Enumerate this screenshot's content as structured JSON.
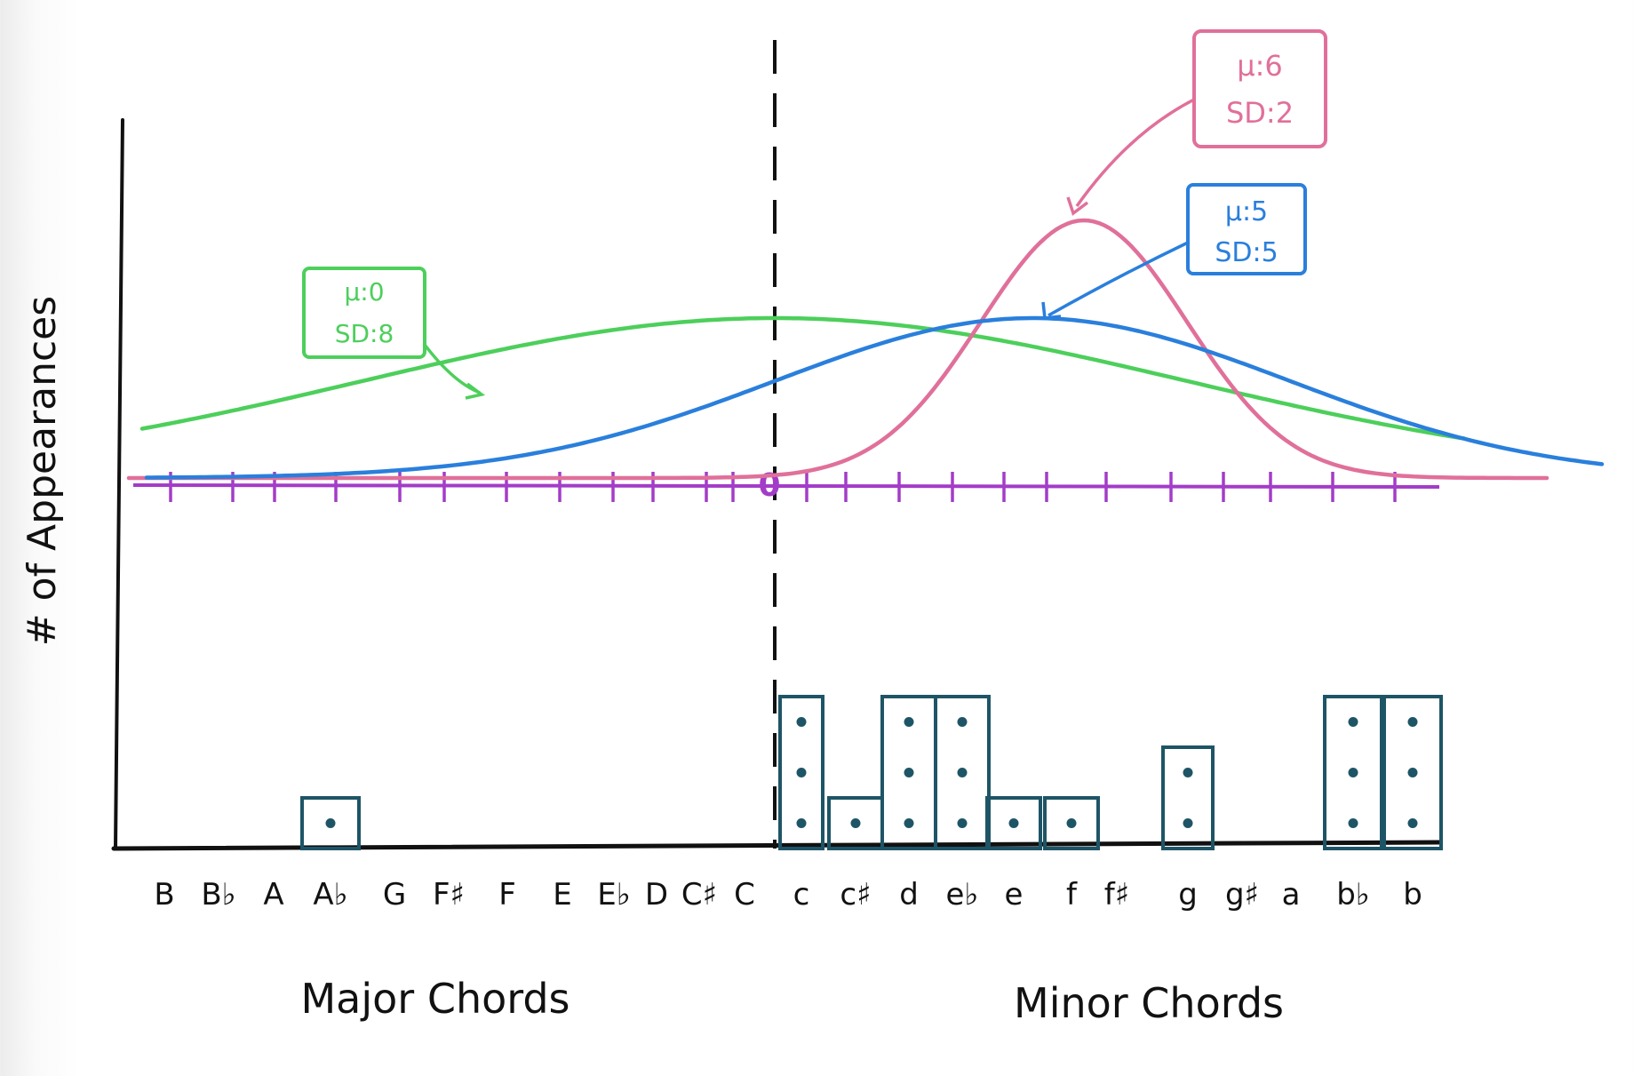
{
  "chart_data": {
    "type": "bar",
    "title": "",
    "xlabel_left": "Major Chords",
    "xlabel_right": "Minor Chords",
    "ylabel": "# of Appearances",
    "zero_label": "0",
    "categories": [
      "B",
      "B♭",
      "A",
      "A♭",
      "G",
      "F♯",
      "F",
      "E",
      "E♭",
      "D",
      "C♯",
      "C",
      "c",
      "c♯",
      "d",
      "e♭",
      "e",
      "f",
      "f♯",
      "g",
      "g♯",
      "a",
      "b♭",
      "b"
    ],
    "values": [
      0,
      0,
      0,
      1,
      0,
      0,
      0,
      0,
      0,
      0,
      0,
      0,
      3,
      1,
      3,
      3,
      1,
      1,
      0,
      2,
      0,
      0,
      3,
      3
    ],
    "ylim": [
      0,
      3
    ],
    "grid": false,
    "annotations": [
      {
        "mu": "μ:0",
        "sd": "SD:8",
        "color": "#4dcf5b"
      },
      {
        "mu": "μ:6",
        "sd": "SD:2",
        "color": "#e0709a"
      },
      {
        "mu": "μ:5",
        "sd": "SD:5",
        "color": "#2a7fdc"
      }
    ],
    "curves": [
      {
        "color": "#4dcf5b",
        "mean": 0,
        "sd": 8
      },
      {
        "color": "#e0709a",
        "mean": 6,
        "sd": 2
      },
      {
        "color": "#2a7fdc",
        "mean": 5,
        "sd": 5
      }
    ],
    "bar_color": "#1e5566"
  }
}
